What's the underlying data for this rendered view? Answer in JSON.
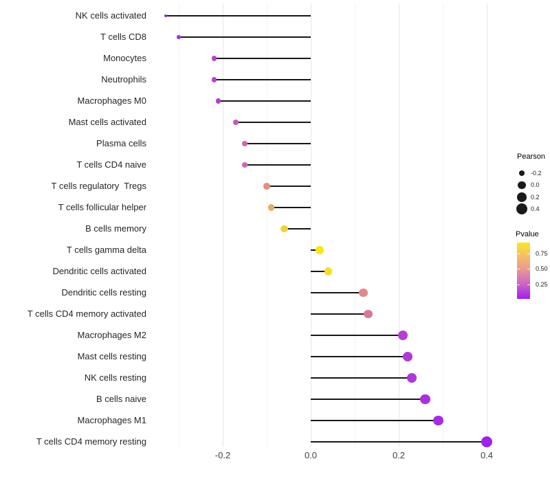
{
  "chart_data": {
    "type": "scatter",
    "variant": "lollipop",
    "orientation": "horizontal",
    "title": "",
    "xlabel": "",
    "ylabel": "",
    "xlim": [
      -0.35,
      0.45
    ],
    "grid": "vertical-only",
    "legend_position": "right",
    "x_ticks": [
      {
        "value": -0.2,
        "label": "-0.2"
      },
      {
        "value": 0.0,
        "label": "0.0"
      },
      {
        "value": 0.2,
        "label": "0.2"
      },
      {
        "value": 0.4,
        "label": "0.4"
      }
    ],
    "x_minor_gridlines": [
      -0.3,
      -0.1,
      0.1,
      0.3
    ],
    "points": [
      {
        "category": "NK cells activated",
        "pearson": -0.33,
        "pvalue_approx": 0.1,
        "color": "#9b2ce0"
      },
      {
        "category": "T cells CD8",
        "pearson": -0.3,
        "pvalue_approx": 0.14,
        "color": "#a535db"
      },
      {
        "category": "Monocytes",
        "pearson": -0.22,
        "pvalue_approx": 0.25,
        "color": "#b843cb"
      },
      {
        "category": "Neutrophils",
        "pearson": -0.22,
        "pvalue_approx": 0.25,
        "color": "#b843cb"
      },
      {
        "category": "Macrophages M0",
        "pearson": -0.21,
        "pvalue_approx": 0.23,
        "color": "#b440ce"
      },
      {
        "category": "Mast cells activated",
        "pearson": -0.17,
        "pvalue_approx": 0.33,
        "color": "#c75bb6"
      },
      {
        "category": "Plasma cells",
        "pearson": -0.15,
        "pvalue_approx": 0.37,
        "color": "#cd66af"
      },
      {
        "category": "T cells CD4 naive",
        "pearson": -0.15,
        "pvalue_approx": 0.38,
        "color": "#ce68ad"
      },
      {
        "category": "T cells regulatory  Tregs",
        "pearson": -0.1,
        "pvalue_approx": 0.55,
        "color": "#e2907a"
      },
      {
        "category": "T cells follicular helper",
        "pearson": -0.09,
        "pvalue_approx": 0.62,
        "color": "#ecaa5e"
      },
      {
        "category": "B cells memory",
        "pearson": -0.06,
        "pvalue_approx": 0.75,
        "color": "#f0d23b"
      },
      {
        "category": "T cells gamma delta",
        "pearson": 0.02,
        "pvalue_approx": 0.87,
        "color": "#f7e719"
      },
      {
        "category": "Dendritic cells activated",
        "pearson": 0.04,
        "pvalue_approx": 0.8,
        "color": "#f3df2c"
      },
      {
        "category": "Dendritic cells resting",
        "pearson": 0.12,
        "pvalue_approx": 0.52,
        "color": "#e08a8a"
      },
      {
        "category": "T cells CD4 memory activated",
        "pearson": 0.13,
        "pvalue_approx": 0.42,
        "color": "#d6789e"
      },
      {
        "category": "Macrophages M2",
        "pearson": 0.21,
        "pvalue_approx": 0.24,
        "color": "#b53ed5"
      },
      {
        "category": "Mast cells resting",
        "pearson": 0.22,
        "pvalue_approx": 0.21,
        "color": "#b038da"
      },
      {
        "category": "NK cells resting",
        "pearson": 0.23,
        "pvalue_approx": 0.2,
        "color": "#af36db"
      },
      {
        "category": "B cells naive",
        "pearson": 0.26,
        "pvalue_approx": 0.17,
        "color": "#aa30df"
      },
      {
        "category": "Macrophages M1",
        "pearson": 0.29,
        "pvalue_approx": 0.13,
        "color": "#a62be2"
      },
      {
        "category": "T cells CD4 memory resting",
        "pearson": 0.4,
        "pvalue_approx": 0.05,
        "color": "#a021ec"
      }
    ],
    "size_legend": {
      "title": "Pearson",
      "dot_color": "#1a1a1a",
      "entries": [
        {
          "value": -0.2,
          "label": "-0.2"
        },
        {
          "value": 0.0,
          "label": "0.0"
        },
        {
          "value": 0.2,
          "label": "0.2"
        },
        {
          "value": 0.4,
          "label": "0.4"
        }
      ]
    },
    "color_legend": {
      "title": "Pvalue",
      "range": [
        0.01,
        0.93
      ],
      "ticks": [
        {
          "value": 0.75,
          "label": "0.75"
        },
        {
          "value": 0.5,
          "label": "0.50"
        },
        {
          "value": 0.25,
          "label": "0.25"
        }
      ],
      "gradient_stops": [
        {
          "pos": 0.0,
          "color": "#fbe723"
        },
        {
          "pos": 0.2,
          "color": "#f6c45f"
        },
        {
          "pos": 0.47,
          "color": "#e89a93"
        },
        {
          "pos": 0.74,
          "color": "#cb63c5"
        },
        {
          "pos": 1.0,
          "color": "#a01ff0"
        }
      ]
    },
    "colors": {
      "stem": "#161616",
      "major_grid": "#e5e5e5",
      "minor_grid": "#f2f2f2",
      "axis_text": "#404040",
      "category_text": "#262626",
      "background": "#ffffff"
    }
  }
}
